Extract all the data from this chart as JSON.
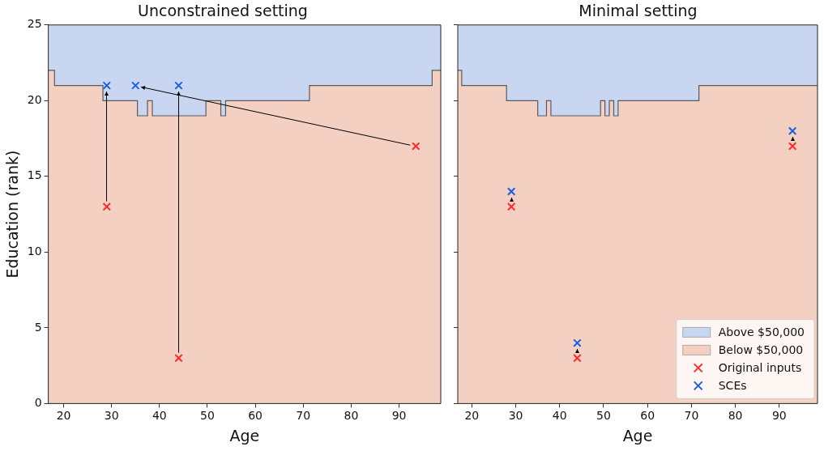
{
  "chart_data": [
    {
      "type": "area",
      "stacked": true,
      "title": "Unconstrained setting",
      "xlabel": "Age",
      "ylabel": "Education (rank)",
      "xlim": [
        16.8,
        98.7
      ],
      "xticks": [
        20,
        30,
        40,
        50,
        60,
        70,
        80,
        90
      ],
      "ylim": [
        0,
        25
      ],
      "yticks": [
        0,
        5,
        10,
        15,
        20,
        25
      ],
      "grid": false,
      "legend": false,
      "series": [
        {
          "color": "#f4d0c3",
          "x": [
            16.8,
            18.1,
            28.2,
            35.4,
            37.5,
            38.5,
            49.7,
            52.8,
            53.8,
            71.3,
            96.9,
            98.7
          ],
          "values": [
            22,
            21,
            20,
            19,
            20,
            19,
            20,
            19,
            20,
            21,
            22,
            22
          ]
        },
        {
          "color": "#c8d6f2",
          "x": [
            16.8,
            18.1,
            28.2,
            35.4,
            37.5,
            38.5,
            49.7,
            52.8,
            53.8,
            71.3,
            96.9,
            98.7
          ],
          "values": [
            3,
            4,
            5,
            6,
            5,
            6,
            5,
            6,
            5,
            4,
            3,
            3
          ]
        },
        {
          "type": "step",
          "color": "#5a5a5a",
          "x": [
            16.8,
            18.1,
            28.2,
            35.4,
            37.5,
            38.5,
            49.7,
            52.8,
            53.8,
            71.3,
            96.9,
            98.7
          ],
          "values": [
            22,
            21,
            20,
            19,
            20,
            19,
            20,
            19,
            20,
            21,
            22,
            22
          ]
        },
        {
          "type": "scatter",
          "marker": "cross",
          "color": "#ff2a2a",
          "x": [
            29,
            44,
            93.5
          ],
          "values": [
            13,
            3,
            17
          ]
        },
        {
          "type": "scatter",
          "marker": "cross",
          "color": "#1a5fe0",
          "x": [
            29,
            44,
            35
          ],
          "values": [
            21,
            21,
            21
          ]
        }
      ]
    },
    {
      "type": "area",
      "stacked": true,
      "title": "Minimal setting",
      "xlabel": "Age",
      "xlim": [
        16.8,
        98.7
      ],
      "xticks": [
        20,
        30,
        40,
        50,
        60,
        70,
        80,
        90
      ],
      "ylim": [
        0,
        25
      ],
      "yticks": [
        0,
        5,
        10,
        15,
        20,
        25
      ],
      "tick_labels": "x",
      "grid": false,
      "legend": "bottom right",
      "series": [
        {
          "name": "Below $50,000",
          "color": "#f4d0c3",
          "x": [
            16.8,
            17.7,
            27.9,
            35,
            37,
            38,
            49.3,
            50.3,
            51.3,
            52.3,
            53.3,
            71.7,
            98.7
          ],
          "values": [
            22,
            21,
            20,
            19,
            20,
            19,
            20,
            19,
            20,
            19,
            20,
            21,
            21
          ]
        },
        {
          "name": "Above $50,000",
          "color": "#c8d6f2",
          "x": [
            16.8,
            17.7,
            27.9,
            35,
            37,
            38,
            49.3,
            50.3,
            51.3,
            52.3,
            53.3,
            71.7,
            98.7
          ],
          "values": [
            3,
            4,
            5,
            6,
            5,
            6,
            5,
            6,
            5,
            6,
            5,
            4,
            4
          ]
        },
        {
          "type": "step",
          "color": "#5a5a5a",
          "x": [
            16.8,
            17.7,
            27.9,
            35,
            37,
            38,
            49.3,
            50.3,
            51.3,
            52.3,
            53.3,
            71.7,
            98.7
          ],
          "values": [
            22,
            21,
            20,
            19,
            20,
            19,
            20,
            19,
            20,
            19,
            20,
            21,
            21
          ]
        },
        {
          "type": "scatter",
          "marker": "cross",
          "name": "Original inputs",
          "color": "#ff2a2a",
          "x": [
            29,
            44,
            93
          ],
          "values": [
            13,
            3,
            17
          ]
        },
        {
          "type": "scatter",
          "marker": "cross",
          "name": "SCEs",
          "color": "#1a5fe0",
          "x": [
            29,
            44,
            93
          ],
          "values": [
            14,
            4,
            18
          ]
        }
      ]
    }
  ]
}
